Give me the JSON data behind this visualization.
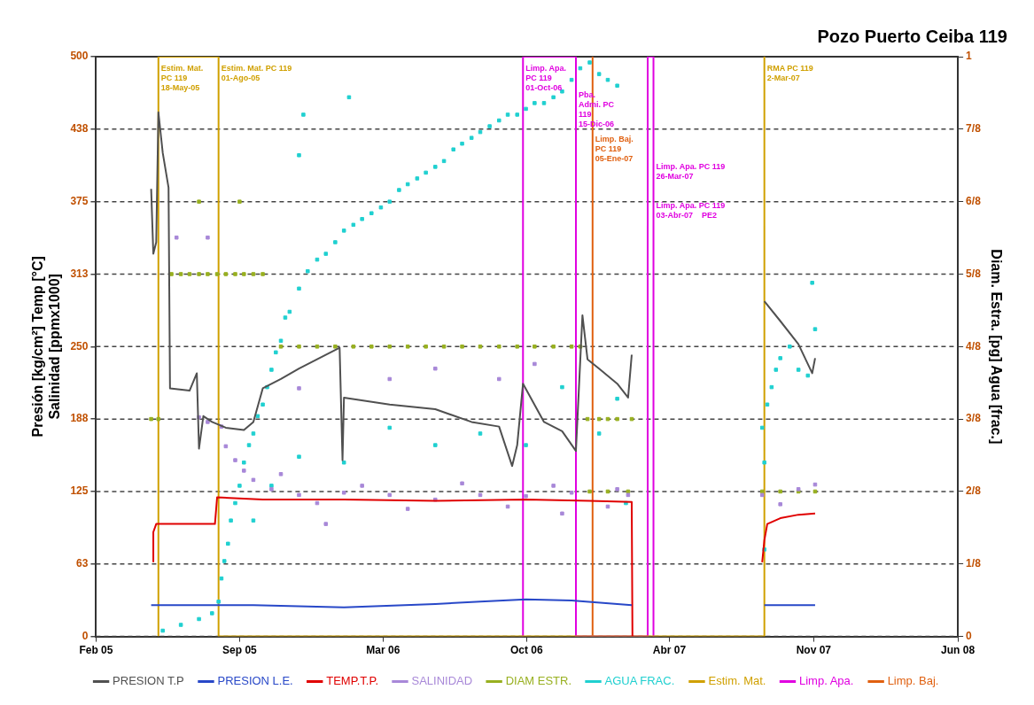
{
  "chart_data": {
    "type": "line",
    "title": "Pozo Puerto Ceiba 119",
    "ylabel": "Presión [kg/cm²] Temp [°C]\nSalinidad [ppmx1000]",
    "y2label": "Diam. Estra. [pg] Agua [frac.]",
    "xlim": [
      "2005-02-28",
      "2008-06-01"
    ],
    "xticks": [
      {
        "value": "2005-02-28",
        "label": "Feb 05"
      },
      {
        "value": "2005-09-14",
        "label": "Sep 05"
      },
      {
        "value": "2006-03-31",
        "label": "Mar 06"
      },
      {
        "value": "2006-10-15",
        "label": "Oct 06"
      },
      {
        "value": "2007-04-30",
        "label": "Abr 07"
      },
      {
        "value": "2007-11-15",
        "label": "Nov 07"
      },
      {
        "value": "2008-06-01",
        "label": "Jun 08"
      }
    ],
    "ylim": [
      0,
      500
    ],
    "yticks": [
      0,
      {
        "value": 62.5,
        "label": "63"
      },
      125,
      {
        "value": 187.5,
        "label": "188"
      },
      250,
      {
        "value": 312.5,
        "label": "313"
      },
      375,
      {
        "value": 437.5,
        "label": "438"
      },
      500
    ],
    "y2lim": [
      0,
      1
    ],
    "y2ticks": [
      0,
      {
        "value": 0.125,
        "label": "1/8"
      },
      {
        "value": 0.25,
        "label": "2/8"
      },
      {
        "value": 0.375,
        "label": "3/8"
      },
      {
        "value": 0.5,
        "label": "4/8"
      },
      {
        "value": 0.625,
        "label": "5/8"
      },
      {
        "value": 0.75,
        "label": "6/8"
      },
      {
        "value": 0.875,
        "label": "7/8"
      },
      1
    ],
    "grid": "y",
    "legend": "bottom",
    "series": [
      {
        "name": "PRESION T.P",
        "marker": "none",
        "color": "#505050",
        "x": [
          "2005-05-15",
          "2005-05-18",
          "2005-05-22",
          "2005-05-25",
          "2005-05-31",
          "2005-06-08",
          "2005-06-10",
          "2005-07-07",
          "2005-07-17",
          "2005-07-20",
          "2005-07-26",
          "2005-08-07",
          "2005-08-26",
          "2005-09-20",
          "2005-10-03",
          "2005-10-16",
          "2005-11-10",
          "2005-12-05",
          "2005-12-30",
          "2006-01-30",
          "2006-02-03",
          "2006-02-05",
          "2006-04-09",
          "2006-06-11",
          "2006-07-31",
          "2006-09-07",
          "2006-09-25",
          "2006-10-02",
          "2006-10-10",
          "2006-11-08",
          "2006-12-03",
          "2006-12-22",
          "2006-12-31",
          "2007-01-07",
          "2007-01-23",
          "2007-02-17",
          "2007-03-04",
          "2007-03-09",
          "2007-04-08",
          "2007-09-08",
          "2007-09-30",
          "2007-10-25",
          "2007-11-13",
          "2007-11-17"
        ],
        "values": [
          386,
          330,
          340,
          452,
          417,
          387,
          214,
          212,
          227,
          162,
          190,
          185,
          180,
          178,
          185,
          214,
          222,
          231,
          239,
          249,
          152,
          206,
          200,
          196,
          185,
          181,
          147,
          165,
          218,
          185,
          177,
          160,
          277,
          239,
          231,
          218,
          206,
          243,
          null,
          289,
          272,
          252,
          227,
          240
        ]
      },
      {
        "name": "PRESION L.E.",
        "marker": "none",
        "color": "#2848c8",
        "x": [
          "2005-05-15",
          "2005-10-03",
          "2006-02-05",
          "2006-06-11",
          "2006-08-12",
          "2006-10-14",
          "2006-12-16",
          "2007-03-09",
          "2007-04-08",
          "2007-09-08",
          "2007-11-17"
        ],
        "values": [
          27,
          27,
          25,
          28,
          30,
          32,
          31,
          27,
          null,
          27,
          27
        ]
      },
      {
        "name": "TEMP.T.P.",
        "marker": "none",
        "color": "#e00000",
        "x": [
          "2005-05-18",
          "2005-05-18",
          "2005-05-22",
          "2005-08-11",
          "2005-08-14",
          "2005-10-16",
          "2006-02-05",
          "2006-06-11",
          "2006-10-14",
          "2007-01-10",
          "2007-03-09",
          "2007-03-10",
          "2007-04-08",
          "2007-09-05",
          "2007-09-08",
          "2007-09-12",
          "2007-09-30",
          "2007-10-25",
          "2007-11-17"
        ],
        "values": [
          64,
          90,
          97,
          97,
          120,
          118,
          118,
          117,
          118,
          117,
          116,
          0,
          null,
          64,
          83,
          97,
          102,
          105,
          106
        ]
      },
      {
        "name": "SALINIDAD",
        "type": "scatter",
        "marker": "square",
        "color": "#a888d8",
        "x": [
          "2005-07-20",
          "2005-08-01",
          "2005-08-20",
          "2005-08-26",
          "2005-09-08",
          "2005-09-20",
          "2005-10-03",
          "2005-10-28",
          "2005-11-10",
          "2005-12-05",
          "2005-12-30",
          "2006-02-05",
          "2006-03-02",
          "2006-04-09",
          "2006-05-04",
          "2006-06-11",
          "2006-07-18",
          "2006-08-12",
          "2006-09-19",
          "2006-10-14",
          "2006-11-21",
          "2006-12-16",
          "2007-02-04",
          "2007-02-17",
          "2007-03-04",
          "2007-09-05",
          "2007-09-30",
          "2007-10-25",
          "2007-11-17",
          "2005-12-05",
          "2006-04-09",
          "2006-06-11",
          "2006-09-07",
          "2006-10-26",
          "2006-12-03",
          "2006-01-11",
          "2005-06-19",
          "2005-08-01"
        ],
        "values": [
          189,
          185,
          181,
          164,
          152,
          143,
          135,
          127,
          140,
          122,
          115,
          124,
          130,
          122,
          110,
          118,
          132,
          122,
          112,
          121,
          130,
          124,
          112,
          127,
          122,
          122,
          114,
          127,
          131,
          214,
          222,
          231,
          222,
          235,
          106,
          97,
          344,
          344
        ]
      },
      {
        "name": "DIAM ESTR.",
        "type": "scatter",
        "marker": "square",
        "axis": "y2",
        "color": "#98b020",
        "x": [
          "2005-05-15",
          "2005-05-25",
          "2005-06-12",
          "2005-06-25",
          "2005-07-07",
          "2005-07-20",
          "2005-08-01",
          "2005-08-14",
          "2005-08-26",
          "2005-09-08",
          "2005-09-20",
          "2005-10-03",
          "2005-10-16",
          "2005-07-20",
          "2005-09-14",
          "2005-11-10",
          "2005-12-05",
          "2005-12-30",
          "2006-01-24",
          "2006-02-18",
          "2006-03-15",
          "2006-04-09",
          "2006-05-04",
          "2006-05-29",
          "2006-06-23",
          "2006-07-18",
          "2006-08-12",
          "2006-09-07",
          "2006-10-02",
          "2006-10-26",
          "2006-11-21",
          "2006-12-16",
          "2006-12-28",
          "2007-01-07",
          "2007-01-23",
          "2007-02-04",
          "2007-02-17",
          "2007-03-09",
          "2007-01-10",
          "2007-02-04",
          "2007-03-04",
          "2007-09-05",
          "2007-09-30",
          "2007-10-25",
          "2007-11-17"
        ],
        "values": [
          0.375,
          0.375,
          0.625,
          0.625,
          0.625,
          0.625,
          0.625,
          0.625,
          0.625,
          0.625,
          0.625,
          0.625,
          0.625,
          0.75,
          0.75,
          0.5,
          0.5,
          0.5,
          0.5,
          0.5,
          0.5,
          0.5,
          0.5,
          0.5,
          0.5,
          0.5,
          0.5,
          0.5,
          0.5,
          0.5,
          0.5,
          0.5,
          0.5,
          0.375,
          0.375,
          0.375,
          0.375,
          0.375,
          0.25,
          0.25,
          0.25,
          0.25,
          0.25,
          0.25,
          0.25
        ]
      },
      {
        "name": "AGUA FRAC.",
        "type": "scatter",
        "marker": "square",
        "axis": "y2",
        "color": "#20d0d0",
        "x": [
          "2005-05-31",
          "2005-06-25",
          "2005-07-20",
          "2005-08-07",
          "2005-08-16",
          "2005-08-20",
          "2005-08-24",
          "2005-08-29",
          "2005-09-02",
          "2005-09-08",
          "2005-09-14",
          "2005-09-20",
          "2005-09-27",
          "2005-10-03",
          "2005-10-09",
          "2005-10-16",
          "2005-10-22",
          "2005-10-28",
          "2005-11-03",
          "2005-11-10",
          "2005-11-16",
          "2005-11-22",
          "2005-12-05",
          "2005-12-17",
          "2005-12-30",
          "2006-01-11",
          "2006-01-24",
          "2006-02-05",
          "2006-02-18",
          "2006-03-02",
          "2006-03-15",
          "2006-03-28",
          "2006-04-09",
          "2006-04-22",
          "2006-05-04",
          "2006-05-17",
          "2006-05-29",
          "2006-06-11",
          "2006-06-23",
          "2006-07-06",
          "2006-07-18",
          "2006-07-31",
          "2006-08-12",
          "2006-08-25",
          "2006-09-07",
          "2006-09-19",
          "2006-10-02",
          "2006-10-14",
          "2006-10-26",
          "2006-11-08",
          "2006-11-21",
          "2006-12-03",
          "2006-12-16",
          "2006-12-28",
          "2007-01-10",
          "2007-01-23",
          "2007-02-04",
          "2007-02-17",
          "2005-10-03",
          "2005-10-28",
          "2005-12-05",
          "2006-02-05",
          "2006-04-09",
          "2006-06-11",
          "2006-08-12",
          "2006-10-14",
          "2006-12-03",
          "2007-01-23",
          "2007-02-17",
          "2007-03-01",
          "2005-12-11",
          "2006-02-12",
          "2005-12-05",
          "2007-09-05",
          "2007-09-08",
          "2007-09-08",
          "2007-09-12",
          "2007-09-18",
          "2007-09-24",
          "2007-09-30",
          "2007-10-13",
          "2007-10-25",
          "2007-11-07",
          "2007-11-13",
          "2007-11-17"
        ],
        "values": [
          0.01,
          0.02,
          0.03,
          0.04,
          0.06,
          0.1,
          0.13,
          0.16,
          0.2,
          0.23,
          0.26,
          0.3,
          0.33,
          0.35,
          0.38,
          0.4,
          0.43,
          0.46,
          0.49,
          0.51,
          0.55,
          0.56,
          0.6,
          0.63,
          0.65,
          0.66,
          0.68,
          0.7,
          0.71,
          0.72,
          0.73,
          0.74,
          0.75,
          0.77,
          0.78,
          0.79,
          0.8,
          0.81,
          0.82,
          0.84,
          0.85,
          0.86,
          0.87,
          0.88,
          0.89,
          0.9,
          0.9,
          0.91,
          0.92,
          0.92,
          0.93,
          0.94,
          0.96,
          0.98,
          0.99,
          0.97,
          0.96,
          0.95,
          0.2,
          0.26,
          0.31,
          0.3,
          0.36,
          0.33,
          0.35,
          0.33,
          0.43,
          0.35,
          0.41,
          0.23,
          0.9,
          0.93,
          0.83,
          0.36,
          0.3,
          0.15,
          0.4,
          0.43,
          0.46,
          0.48,
          0.5,
          0.46,
          0.45,
          0.61,
          0.53
        ]
      },
      {
        "name": "Estim. Mat.",
        "marker": "none",
        "color": "#d0a000",
        "x": [
          "2005-05-25",
          "2005-05-25",
          "2005-08-16",
          "2005-08-16",
          "2007-09-08",
          "2007-09-08"
        ],
        "values": [
          0,
          500,
          500,
          0,
          0,
          500
        ]
      },
      {
        "name": "Limp. Apa.",
        "marker": "none",
        "color": "#e000e0",
        "x": [
          "2006-10-10",
          "2006-10-10",
          "2006-12-22",
          "2006-12-22",
          "2007-03-31",
          "2007-03-31",
          "2007-04-08",
          "2007-04-08"
        ],
        "values": [
          0,
          500,
          500,
          0,
          0,
          500,
          500,
          0
        ]
      },
      {
        "name": "Limp. Baj.",
        "marker": "none",
        "color": "#e06010",
        "x": [
          "2007-01-14",
          "2007-01-14"
        ],
        "values": [
          0,
          500
        ]
      }
    ],
    "annotations": [
      {
        "text": "Estim. Mat. PC 119\n18-May-05",
        "x": "2005-05-25",
        "y": 493
      },
      {
        "text": "Estim. Mat. PC 119\n01-Ago-05",
        "x": "2005-08-16",
        "y": 493
      },
      {
        "text": "Limp. Apa. PC 119\n01-Oct-06",
        "x": "2006-10-10",
        "y": 493
      },
      {
        "text": "Pba. Admi. PC 119\n15-Dic-06",
        "x": "2006-12-22",
        "y": 470
      },
      {
        "text": "Limp. Baj. PC 119\n05-Ene-07",
        "x": "2007-01-14",
        "y": 432
      },
      {
        "text": "Limp. Apa. PC 119\n26-Mar-07",
        "x": "2007-04-08",
        "y": 408
      },
      {
        "text": "Limp. Apa. PC 119\n03-Abr-07    PE2",
        "x": "2007-04-08",
        "y": 375
      },
      {
        "text": "RMA PC 119\n2-Mar-07",
        "x": "2007-09-08",
        "y": 493
      }
    ]
  }
}
